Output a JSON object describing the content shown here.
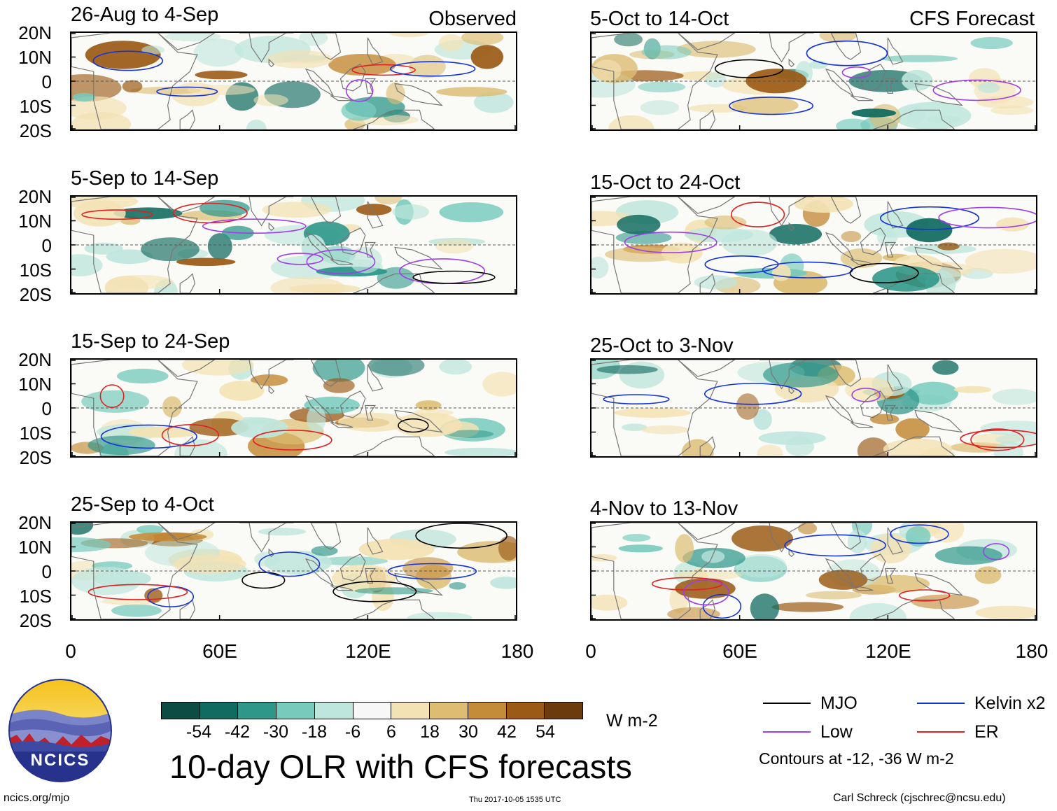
{
  "header": {
    "observed": "Observed",
    "forecast": "CFS Forecast"
  },
  "left_panels": [
    {
      "title": "26-Aug to 4-Sep"
    },
    {
      "title": "5-Sep to 14-Sep"
    },
    {
      "title": "15-Sep to 24-Sep"
    },
    {
      "title": "25-Sep to 4-Oct"
    }
  ],
  "right_panels": [
    {
      "title": "5-Oct to 14-Oct"
    },
    {
      "title": "15-Oct to 24-Oct"
    },
    {
      "title": "25-Oct to 3-Nov"
    },
    {
      "title": "4-Nov to 13-Nov"
    }
  ],
  "lat_labels": [
    "20N",
    "10N",
    "0",
    "10S",
    "20S"
  ],
  "lon_labels": [
    "0",
    "60E",
    "120E",
    "180"
  ],
  "colorbar": {
    "labels": [
      "-54",
      "-42",
      "-30",
      "-18",
      "-6",
      "6",
      "18",
      "30",
      "42",
      "54"
    ],
    "units": "W m-2",
    "colors": [
      "#0d4c45",
      "#116b60",
      "#2e978a",
      "#77cbbd",
      "#bfe6dd",
      "#f7f7f7",
      "#f3e2b4",
      "#dcbd72",
      "#c48b38",
      "#9b5a16",
      "#6b3b0e"
    ]
  },
  "title": "10-day OLR with CFS forecasts",
  "legend": {
    "items": [
      {
        "label": "MJO",
        "color": "#000000"
      },
      {
        "label": "Kelvin x2",
        "color": "#1533d6"
      },
      {
        "label": "Low",
        "color": "#a03ee8"
      },
      {
        "label": "ER",
        "color": "#e02020"
      }
    ],
    "note": "Contours at -12, -36 W m-2"
  },
  "footer": {
    "logo_text": "NCICS",
    "url": "ncics.org/mjo",
    "timestamp": "Thu 2017-10-05 1535 UTC",
    "credit": "Carl Schreck (cjschrec@ncsu.edu)"
  }
}
